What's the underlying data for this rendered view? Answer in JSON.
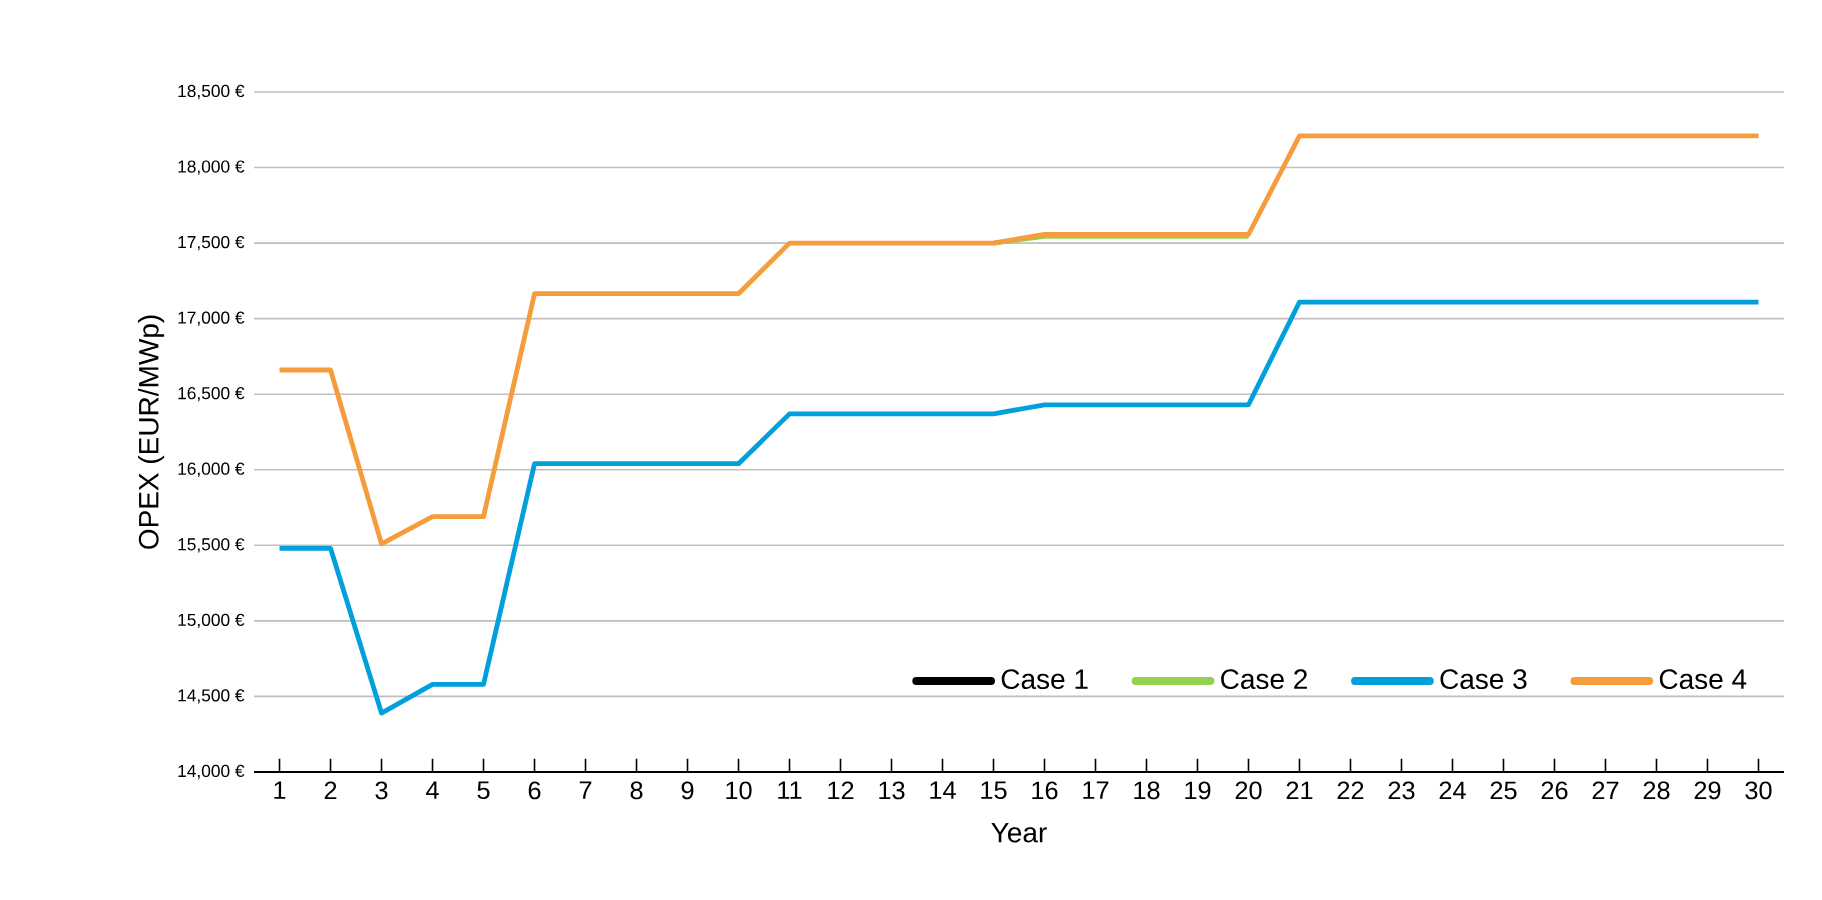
{
  "chart_data": {
    "type": "line",
    "xlabel": "Year",
    "ylabel": "OPEX (EUR/MWp)",
    "x": [
      1,
      2,
      3,
      4,
      5,
      6,
      7,
      8,
      9,
      10,
      11,
      12,
      13,
      14,
      15,
      16,
      17,
      18,
      19,
      20,
      21,
      22,
      23,
      24,
      25,
      26,
      27,
      28,
      29,
      30
    ],
    "xlim": [
      0.5,
      30.5
    ],
    "xticks": [
      1,
      2,
      3,
      4,
      5,
      6,
      7,
      8,
      9,
      10,
      11,
      12,
      13,
      14,
      15,
      16,
      17,
      18,
      19,
      20,
      21,
      22,
      23,
      24,
      25,
      26,
      27,
      28,
      29,
      30
    ],
    "ylim": [
      14000,
      18500
    ],
    "yticks": [
      {
        "value": 14000,
        "label": "14,000 €"
      },
      {
        "value": 14500,
        "label": "14,500 €"
      },
      {
        "value": 15000,
        "label": "15,000 €"
      },
      {
        "value": 15500,
        "label": "15,500 €"
      },
      {
        "value": 16000,
        "label": "16,000 €"
      },
      {
        "value": 16500,
        "label": "16,500 €"
      },
      {
        "value": 17000,
        "label": "17,000 €"
      },
      {
        "value": 17500,
        "label": "17,500 €"
      },
      {
        "value": 18000,
        "label": "18,000 €"
      },
      {
        "value": 18500,
        "label": "18,500 €"
      }
    ],
    "grid": "y",
    "legend": "bottom right",
    "marker": "none",
    "line_style": "solid",
    "series": [
      {
        "name": "Case 1",
        "color": "#000000",
        "values": [
          null,
          null,
          null,
          null,
          null,
          null,
          null,
          null,
          null,
          null,
          null,
          null,
          null,
          null,
          null,
          null,
          null,
          null,
          null,
          null,
          null,
          null,
          null,
          null,
          null,
          null,
          null,
          null,
          null,
          null
        ]
      },
      {
        "name": "Case 2",
        "color": "#92d050",
        "values": [
          null,
          null,
          null,
          null,
          null,
          null,
          null,
          null,
          null,
          null,
          null,
          null,
          null,
          null,
          17500,
          17545,
          17545,
          17545,
          17545,
          17545,
          null,
          null,
          null,
          null,
          null,
          null,
          null,
          null,
          null,
          null
        ]
      },
      {
        "name": "Case 3",
        "color": "#00a0dc",
        "values": [
          15480,
          15480,
          14390,
          14580,
          14580,
          16040,
          16040,
          16040,
          16040,
          16040,
          16370,
          16370,
          16370,
          16370,
          16370,
          16430,
          16430,
          16430,
          16430,
          16430,
          17110,
          17110,
          17110,
          17110,
          17110,
          17110,
          17110,
          17110,
          17110,
          17110
        ]
      },
      {
        "name": "Case 4",
        "color": "#f59c3c",
        "values": [
          16660,
          16660,
          15510,
          15690,
          15690,
          17165,
          17165,
          17165,
          17165,
          17165,
          17500,
          17500,
          17500,
          17500,
          17500,
          17557,
          17557,
          17557,
          17557,
          17557,
          18210,
          18210,
          18210,
          18210,
          18210,
          18210,
          18210,
          18210,
          18210,
          18210
        ]
      }
    ]
  }
}
